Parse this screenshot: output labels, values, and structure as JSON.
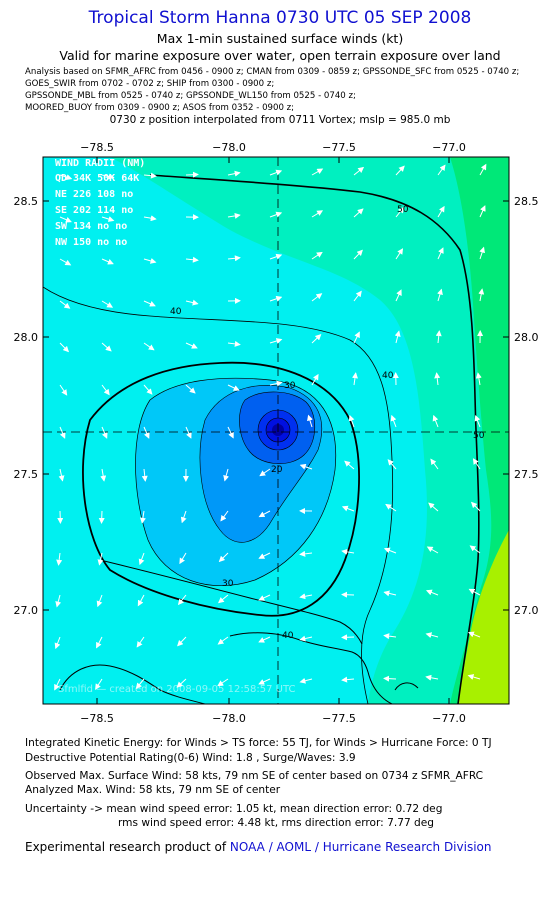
{
  "header": {
    "title": "Tropical Storm Hanna 0730 UTC 05 SEP 2008",
    "subtitle1": "Max 1-min sustained surface winds (kt)",
    "subtitle2": "Valid for marine exposure over water, open terrain exposure over land",
    "sources": [
      "Analysis based on  SFMR_AFRC from 0456 - 0900 z;  CMAN from 0309 - 0859 z;  GPSSONDE_SFC from 0525 - 0740 z;",
      "GOES_SWIR from 0702 - 0702 z;  SHIP from 0300 - 0900 z;",
      "GPSSONDE_MBL from 0525 - 0740 z;  GPSSONDE_WL150 from 0525 - 0740 z;",
      "MOORED_BUOY from 0309 - 0900 z;  ASOS from 0352 - 0900 z;"
    ],
    "interp": "0730 z position interpolated from 0711 Vortex; mslp = 985.0 mb"
  },
  "map": {
    "lon_ticks": [
      "−78.5",
      "−78.0",
      "−77.5",
      "−77.0"
    ],
    "lat_ticks": [
      "28.5",
      "28.0",
      "27.5",
      "27.0"
    ],
    "lon_range": [
      -78.75,
      -76.8
    ],
    "lat_range": [
      26.65,
      28.82
    ],
    "center": {
      "lon": -77.73,
      "lat": 27.65
    },
    "contour_labels": [
      "50",
      "40",
      "30",
      "30",
      "20",
      "40",
      "50",
      "40"
    ],
    "wind_radii": {
      "title": "WIND RADII (NM)",
      "header": "QD  34K  50K  64K",
      "rows": [
        "NE  226  108   no",
        "SE  202  114   no",
        "SW  134   no   no",
        "NW  150   no   no"
      ]
    },
    "watermark": "Sfmlfid — created on 2008-09-05 12:58:57 UTC",
    "colors": {
      "ts_band": "#00e878",
      "mid_band": "#00f0c0",
      "core_band": "#00f0f0",
      "inner1": "#00c8f8",
      "inner2": "#0098f8",
      "inner3": "#0060f0",
      "inner4": "#0030f0",
      "eye": "#0010e0",
      "high": "#a8f000"
    }
  },
  "footer": {
    "ike": "Integrated Kinetic Energy:  for Winds > TS force: 55 TJ,  for Winds > Hurricane Force: 0 TJ",
    "dpr": "Destructive Potential Rating(0-6)   Wind: 1.8 , Surge/Waves: 3.9",
    "observed": "Observed Max. Surface Wind: 58 kts, 79 nm SE of center based on 0734 z SFMR_AFRC",
    "analyzed": "Analyzed Max. Wind: 58 kts, 79 nm SE of center",
    "uncert1": "Uncertainty -> mean wind speed error: 1.05 kt,   mean direction error: 0.72 deg",
    "uncert2": "rms wind speed error: 4.48 kt,   rms direction error: 7.77 deg",
    "credit_prefix": "Experimental research product of ",
    "credit_org": "NOAA / AOML / Hurricane Research Division"
  }
}
